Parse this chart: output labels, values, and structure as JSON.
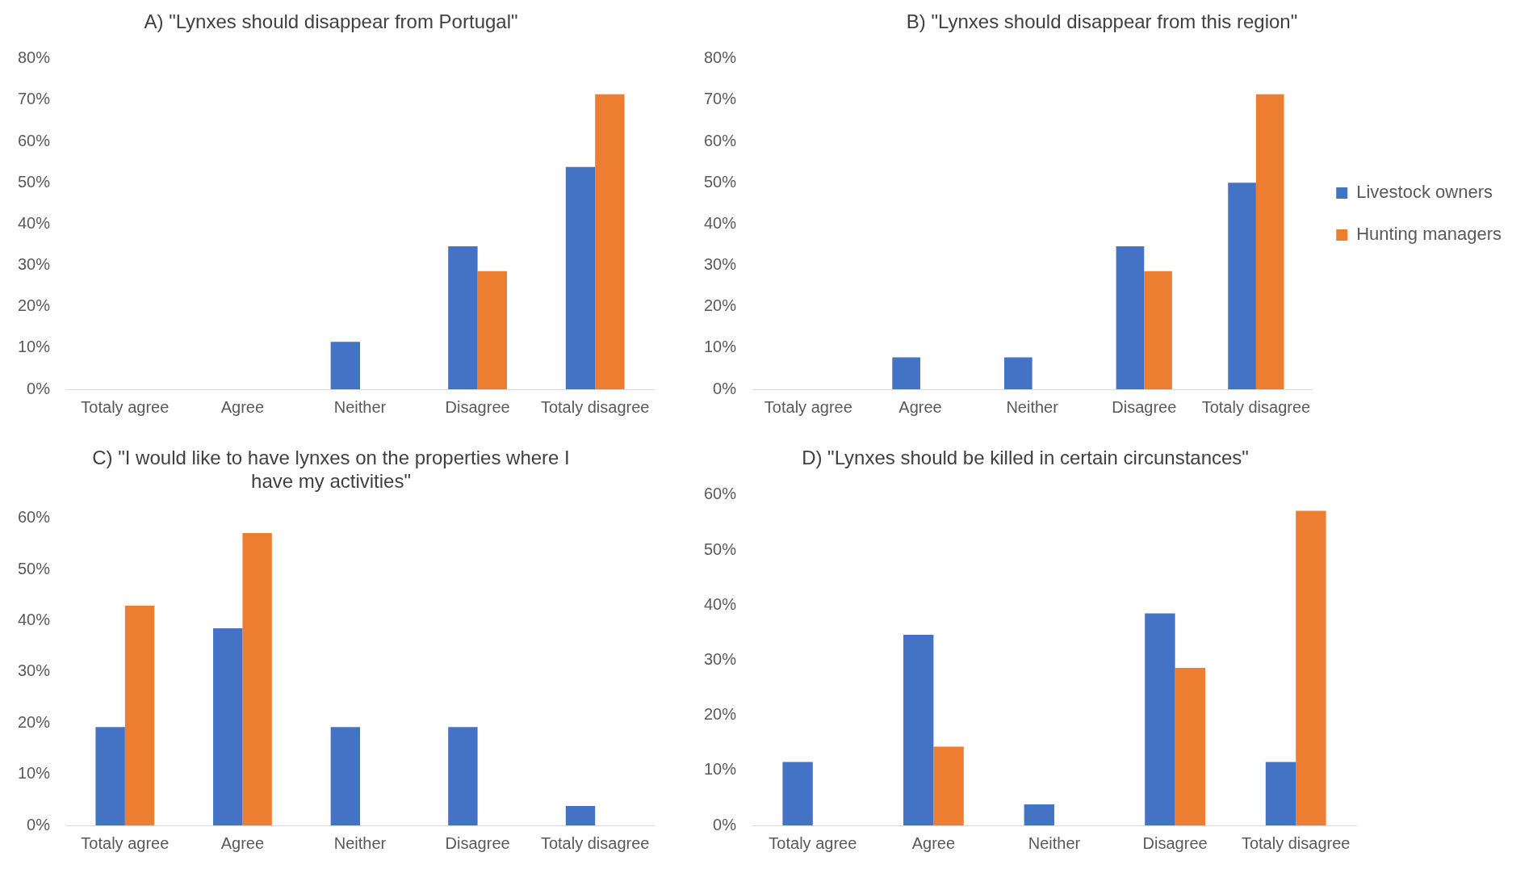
{
  "chart_data": [
    {
      "type": "bar",
      "title": "A) \"Lynxes should disappear from Portugal\"",
      "categories": [
        "Totaly agree",
        "Agree",
        "Neither",
        "Disagree",
        "Totaly disagree"
      ],
      "series": [
        {
          "color": "#4472c4",
          "values": [
            0,
            0,
            11.5,
            34.6,
            53.8
          ]
        },
        {
          "color": "#ed7d31",
          "values": [
            0,
            0,
            0,
            28.6,
            71.4
          ]
        }
      ],
      "ylim": [
        0,
        80
      ],
      "yticks": [
        {
          "value": 0,
          "label": "0%"
        },
        {
          "value": 10,
          "label": "10%"
        },
        {
          "value": 20,
          "label": "20%"
        },
        {
          "value": 30,
          "label": "30%"
        },
        {
          "value": 40,
          "label": "40%"
        },
        {
          "value": 50,
          "label": "50%"
        },
        {
          "value": 60,
          "label": "60%"
        },
        {
          "value": 70,
          "label": "70%"
        },
        {
          "value": 80,
          "label": "80%"
        }
      ],
      "grid": false,
      "legend": false
    },
    {
      "type": "bar",
      "title": "B) \"Lynxes should disappear from this region\"",
      "categories": [
        "Totaly agree",
        "Agree",
        "Neither",
        "Disagree",
        "Totaly disagree"
      ],
      "series": [
        {
          "name": "Livestock owners",
          "color": "#4472c4",
          "values": [
            0,
            7.7,
            7.7,
            34.6,
            50
          ]
        },
        {
          "name": "Hunting managers",
          "color": "#ed7d31",
          "values": [
            0,
            0,
            0,
            28.6,
            71.4
          ]
        }
      ],
      "ylim": [
        0,
        80
      ],
      "yticks": [
        {
          "value": 0,
          "label": "0%"
        },
        {
          "value": 10,
          "label": "10%"
        },
        {
          "value": 20,
          "label": "20%"
        },
        {
          "value": 30,
          "label": "30%"
        },
        {
          "value": 40,
          "label": "40%"
        },
        {
          "value": 50,
          "label": "50%"
        },
        {
          "value": 60,
          "label": "60%"
        },
        {
          "value": 70,
          "label": "70%"
        },
        {
          "value": 80,
          "label": "80%"
        }
      ],
      "grid": false,
      "legend": "right"
    },
    {
      "type": "bar",
      "title": "C) \"I would like to have lynxes on the properties where I have my activities\"",
      "categories": [
        "Totaly agree",
        "Agree",
        "Neither",
        "Disagree",
        "Totaly disagree"
      ],
      "series": [
        {
          "color": "#4472c4",
          "values": [
            19.2,
            38.5,
            19.2,
            19.2,
            3.8
          ]
        },
        {
          "color": "#ed7d31",
          "values": [
            42.9,
            57.1,
            0,
            0,
            0
          ]
        }
      ],
      "ylim": [
        0,
        60
      ],
      "yticks": [
        {
          "value": 0,
          "label": "0%"
        },
        {
          "value": 10,
          "label": "10%"
        },
        {
          "value": 20,
          "label": "20%"
        },
        {
          "value": 30,
          "label": "30%"
        },
        {
          "value": 40,
          "label": "40%"
        },
        {
          "value": 50,
          "label": "50%"
        },
        {
          "value": 60,
          "label": "60%"
        }
      ],
      "grid": false,
      "legend": false
    },
    {
      "type": "bar",
      "title": "D) \"Lynxes should be killed in certain circunstances\"",
      "categories": [
        "Totaly agree",
        "Agree",
        "Neither",
        "Disagree",
        "Totaly disagree"
      ],
      "series": [
        {
          "color": "#4472c4",
          "values": [
            11.5,
            34.6,
            3.8,
            38.5,
            11.5
          ]
        },
        {
          "color": "#ed7d31",
          "values": [
            0,
            14.3,
            0,
            28.6,
            57.1
          ]
        }
      ],
      "ylim": [
        0,
        60
      ],
      "yticks": [
        {
          "value": 0,
          "label": "0%"
        },
        {
          "value": 10,
          "label": "10%"
        },
        {
          "value": 20,
          "label": "20%"
        },
        {
          "value": 30,
          "label": "30%"
        },
        {
          "value": 40,
          "label": "40%"
        },
        {
          "value": 50,
          "label": "50%"
        },
        {
          "value": 60,
          "label": "60%"
        }
      ],
      "grid": false,
      "legend": false
    }
  ]
}
